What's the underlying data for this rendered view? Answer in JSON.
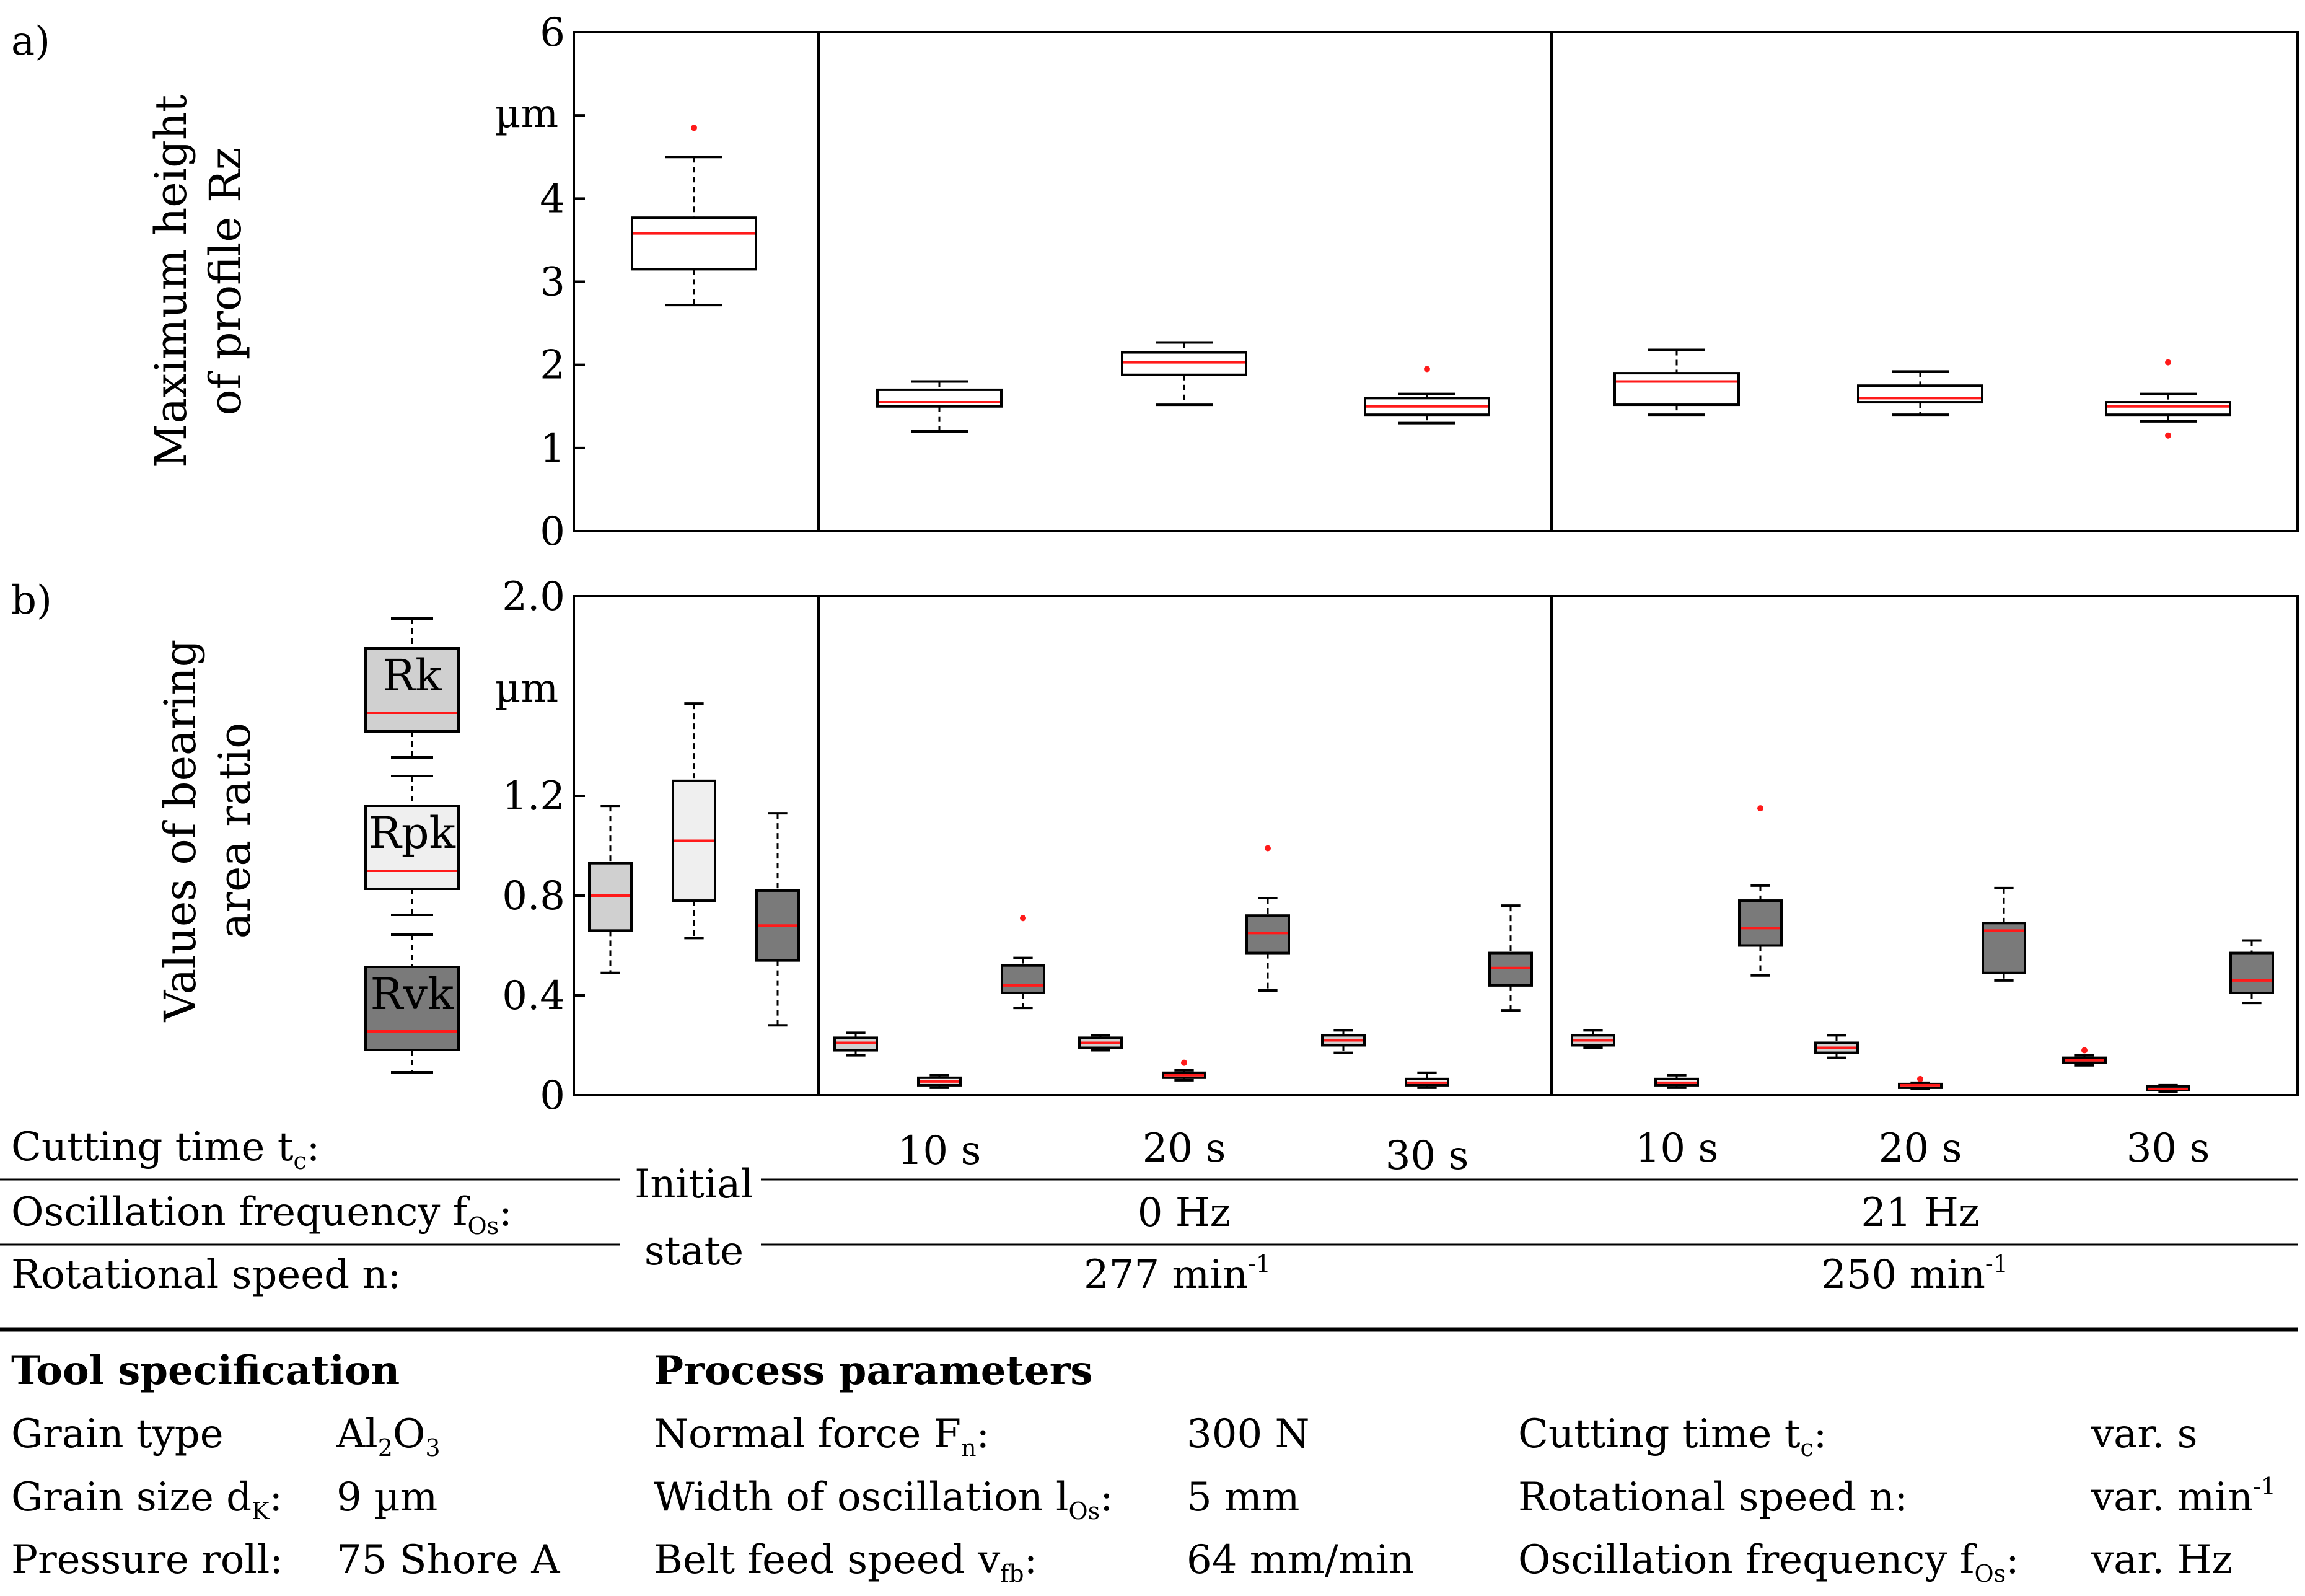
{
  "panel_labels": {
    "a": "a)",
    "b": "b)"
  },
  "chart_data": [
    {
      "type": "box",
      "panel": "a)",
      "ylabel_lines": [
        "Maximum height",
        "of profile Rz"
      ],
      "unit": "µm",
      "ylim": [
        0,
        6
      ],
      "yticks": [
        "0",
        "1",
        "2",
        "3",
        "4",
        "5",
        "6"
      ],
      "boxes": [
        {
          "group": "Initial state",
          "color": "#ffffff",
          "q1": 3.15,
          "median": 3.58,
          "q3": 3.77,
          "low": 2.72,
          "high": 4.5,
          "outliers": [
            4.85
          ]
        },
        {
          "group": "0 Hz 10 s",
          "color": "#ffffff",
          "q1": 1.5,
          "median": 1.55,
          "q3": 1.7,
          "low": 1.2,
          "high": 1.8,
          "outliers": []
        },
        {
          "group": "0 Hz 20 s",
          "color": "#ffffff",
          "q1": 1.88,
          "median": 2.03,
          "q3": 2.15,
          "low": 1.52,
          "high": 2.27,
          "outliers": []
        },
        {
          "group": "0 Hz 30 s",
          "color": "#ffffff",
          "q1": 1.4,
          "median": 1.5,
          "q3": 1.6,
          "low": 1.3,
          "high": 1.65,
          "outliers": [
            1.95
          ]
        },
        {
          "group": "21 Hz 10 s",
          "color": "#ffffff",
          "q1": 1.52,
          "median": 1.8,
          "q3": 1.9,
          "low": 1.4,
          "high": 2.18,
          "outliers": []
        },
        {
          "group": "21 Hz 20 s",
          "color": "#ffffff",
          "q1": 1.55,
          "median": 1.6,
          "q3": 1.75,
          "low": 1.4,
          "high": 1.92,
          "outliers": []
        },
        {
          "group": "21 Hz 30 s",
          "color": "#ffffff",
          "q1": 1.4,
          "median": 1.5,
          "q3": 1.55,
          "low": 1.32,
          "high": 1.65,
          "outliers": [
            2.03,
            1.15
          ]
        }
      ]
    },
    {
      "type": "box",
      "panel": "b)",
      "ylabel_lines": [
        "Values of  bearing",
        "area ratio"
      ],
      "unit": "µm",
      "ylim": [
        0,
        2.0
      ],
      "yticks": [
        "0",
        "0.4",
        "0.8",
        "1.2",
        "2.0"
      ],
      "ytick_values": [
        0,
        0.4,
        0.8,
        1.2,
        2.0
      ],
      "legend": [
        {
          "label": "Rk",
          "color": "#d0d0d0"
        },
        {
          "label": "Rpk",
          "color": "#efefef"
        },
        {
          "label": "Rvk",
          "color": "#7a7a7a"
        }
      ],
      "boxes": [
        {
          "group": "Initial state",
          "series": "Rk",
          "color": "#d0d0d0",
          "q1": 0.66,
          "median": 0.8,
          "q3": 0.93,
          "low": 0.49,
          "high": 1.16,
          "outliers": []
        },
        {
          "group": "Initial state",
          "series": "Rpk",
          "color": "#efefef",
          "q1": 0.78,
          "median": 1.02,
          "q3": 1.26,
          "low": 0.63,
          "high": 1.57,
          "outliers": []
        },
        {
          "group": "Initial state",
          "series": "Rvk",
          "color": "#7a7a7a",
          "q1": 0.54,
          "median": 0.68,
          "q3": 0.82,
          "low": 0.28,
          "high": 1.13,
          "outliers": []
        },
        {
          "group": "0 Hz 10 s",
          "series": "Rk",
          "color": "#d0d0d0",
          "q1": 0.18,
          "median": 0.21,
          "q3": 0.23,
          "low": 0.16,
          "high": 0.25,
          "outliers": []
        },
        {
          "group": "0 Hz 10 s",
          "series": "Rpk",
          "color": "#efefef",
          "q1": 0.04,
          "median": 0.055,
          "q3": 0.07,
          "low": 0.03,
          "high": 0.08,
          "outliers": []
        },
        {
          "group": "0 Hz 10 s",
          "series": "Rvk",
          "color": "#7a7a7a",
          "q1": 0.41,
          "median": 0.44,
          "q3": 0.52,
          "low": 0.35,
          "high": 0.55,
          "outliers": [
            0.71
          ]
        },
        {
          "group": "0 Hz 20 s",
          "series": "Rk",
          "color": "#d0d0d0",
          "q1": 0.19,
          "median": 0.21,
          "q3": 0.23,
          "low": 0.18,
          "high": 0.24,
          "outliers": []
        },
        {
          "group": "0 Hz 20 s",
          "series": "Rpk",
          "color": "#efefef",
          "q1": 0.07,
          "median": 0.08,
          "q3": 0.09,
          "low": 0.06,
          "high": 0.1,
          "outliers": [
            0.13
          ]
        },
        {
          "group": "0 Hz 20 s",
          "series": "Rvk",
          "color": "#7a7a7a",
          "q1": 0.57,
          "median": 0.65,
          "q3": 0.72,
          "low": 0.42,
          "high": 0.79,
          "outliers": [
            0.99
          ]
        },
        {
          "group": "0 Hz 30 s",
          "series": "Rk",
          "color": "#d0d0d0",
          "q1": 0.2,
          "median": 0.22,
          "q3": 0.24,
          "low": 0.17,
          "high": 0.26,
          "outliers": []
        },
        {
          "group": "0 Hz 30 s",
          "series": "Rpk",
          "color": "#efefef",
          "q1": 0.04,
          "median": 0.05,
          "q3": 0.065,
          "low": 0.03,
          "high": 0.09,
          "outliers": []
        },
        {
          "group": "0 Hz 30 s",
          "series": "Rvk",
          "color": "#7a7a7a",
          "q1": 0.44,
          "median": 0.51,
          "q3": 0.57,
          "low": 0.34,
          "high": 0.76,
          "outliers": []
        },
        {
          "group": "21 Hz 10 s",
          "series": "Rk",
          "color": "#d0d0d0",
          "q1": 0.2,
          "median": 0.22,
          "q3": 0.24,
          "low": 0.19,
          "high": 0.26,
          "outliers": []
        },
        {
          "group": "21 Hz 10 s",
          "series": "Rpk",
          "color": "#efefef",
          "q1": 0.04,
          "median": 0.05,
          "q3": 0.065,
          "low": 0.03,
          "high": 0.08,
          "outliers": []
        },
        {
          "group": "21 Hz 10 s",
          "series": "Rvk",
          "color": "#7a7a7a",
          "q1": 0.6,
          "median": 0.67,
          "q3": 0.78,
          "low": 0.48,
          "high": 0.84,
          "outliers": [
            1.15
          ]
        },
        {
          "group": "21 Hz 20 s",
          "series": "Rk",
          "color": "#d0d0d0",
          "q1": 0.17,
          "median": 0.19,
          "q3": 0.21,
          "low": 0.15,
          "high": 0.24,
          "outliers": []
        },
        {
          "group": "21 Hz 20 s",
          "series": "Rpk",
          "color": "#efefef",
          "q1": 0.03,
          "median": 0.04,
          "q3": 0.045,
          "low": 0.025,
          "high": 0.05,
          "outliers": [
            0.065
          ]
        },
        {
          "group": "21 Hz 20 s",
          "series": "Rvk",
          "color": "#7a7a7a",
          "q1": 0.49,
          "median": 0.66,
          "q3": 0.69,
          "low": 0.46,
          "high": 0.83,
          "outliers": []
        },
        {
          "group": "21 Hz 30 s",
          "series": "Rk",
          "color": "#d0d0d0",
          "q1": 0.13,
          "median": 0.14,
          "q3": 0.15,
          "low": 0.12,
          "high": 0.16,
          "outliers": [
            0.18
          ]
        },
        {
          "group": "21 Hz 30 s",
          "series": "Rpk",
          "color": "#efefef",
          "q1": 0.02,
          "median": 0.025,
          "q3": 0.035,
          "low": 0.015,
          "high": 0.04,
          "outliers": []
        },
        {
          "group": "21 Hz 30 s",
          "series": "Rvk",
          "color": "#7a7a7a",
          "q1": 0.41,
          "median": 0.46,
          "q3": 0.57,
          "low": 0.37,
          "high": 0.62,
          "outliers": []
        }
      ]
    }
  ],
  "x_table": {
    "rows": [
      {
        "label": "Cutting time t",
        "label_sub": "c",
        "label_end": ":"
      },
      {
        "label": "Oscillation frequency f",
        "label_sub": "Os",
        "label_end": ":"
      },
      {
        "label": "Rotational speed n:",
        "label_sub": "",
        "label_end": ""
      }
    ],
    "initial_state": [
      "Initial",
      "state"
    ],
    "cutting_times": [
      "10 s",
      "20 s",
      "30 s",
      "10 s",
      "20 s",
      "30 s"
    ],
    "frequencies": [
      "0 Hz",
      "21 Hz"
    ],
    "speeds": [
      {
        "value": "277 min",
        "sup": "-1"
      },
      {
        "value": "250 min",
        "sup": "-1"
      }
    ]
  },
  "tool_spec": {
    "heading": "Tool specification",
    "rows": [
      {
        "label": "Grain type",
        "label_sub": "",
        "label_end": "",
        "value": "Al",
        "value_parts": [
          "Al",
          "2",
          "O",
          "3"
        ]
      },
      {
        "label": "Grain size d",
        "label_sub": "K",
        "label_end": ":",
        "value": "9 µm",
        "value_parts": [
          "9 µm"
        ]
      },
      {
        "label": "Pressure roll:",
        "label_sub": "",
        "label_end": "",
        "value": "75 Shore A",
        "value_parts": [
          "75 Shore A"
        ]
      }
    ]
  },
  "process_params": {
    "heading": "Process parameters",
    "col1": [
      {
        "label": "Normal force F",
        "label_sub": "n",
        "label_end": ":",
        "value": "300 N"
      },
      {
        "label": "Width of oscillation  l",
        "label_sub": "Os",
        "label_end": ":",
        "value": "5 mm"
      },
      {
        "label": "Belt feed speed v",
        "label_sub": "fb",
        "label_end": ":",
        "value": "64 mm/min"
      }
    ],
    "col2": [
      {
        "label": "Cutting time t",
        "label_sub": "c",
        "label_end": ":",
        "value": "var. s",
        "value_sup": ""
      },
      {
        "label": "Rotational speed n:",
        "label_sub": "",
        "label_end": "",
        "value": "var. min",
        "value_sup": "-1"
      },
      {
        "label": "Oscillation frequency f",
        "label_sub": "Os",
        "label_end": ":",
        "value": "var. Hz",
        "value_sup": ""
      }
    ]
  }
}
